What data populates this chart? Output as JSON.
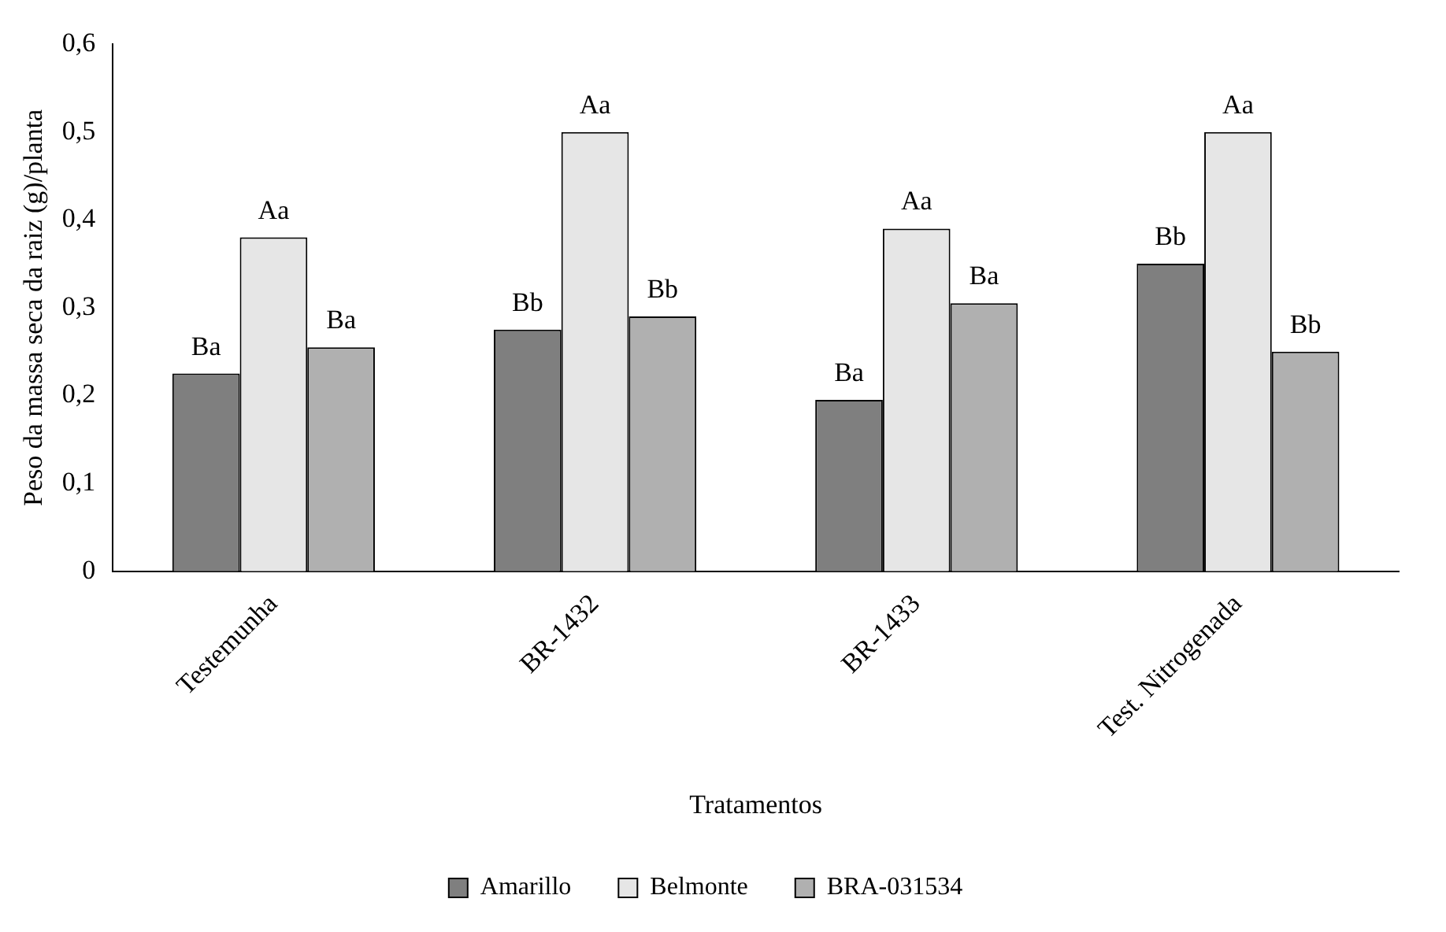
{
  "chart_data": {
    "type": "bar",
    "xlabel": "Tratamentos",
    "ylabel": "Peso da massa seca da raiz (g)/planta",
    "categories": [
      "Testemunha",
      "BR-1432",
      "BR-1433",
      "Test. Nitrogenada"
    ],
    "series": [
      {
        "name": "Amarillo",
        "color": "#7f7f7f",
        "values": [
          0.225,
          0.275,
          0.195,
          0.35
        ],
        "value_labels": [
          "Ba",
          "Bb",
          "Ba",
          "Bb"
        ]
      },
      {
        "name": "Belmonte",
        "color": "#e6e6e6",
        "values": [
          0.38,
          0.5,
          0.39,
          0.5
        ],
        "value_labels": [
          "Aa",
          "Aa",
          "Aa",
          "Aa"
        ]
      },
      {
        "name": "BRA-031534",
        "color": "#b0b0b0",
        "values": [
          0.255,
          0.29,
          0.305,
          0.25
        ],
        "value_labels": [
          "Ba",
          "Bb",
          "Ba",
          "Bb"
        ]
      }
    ],
    "ylim": [
      0,
      0.6
    ],
    "yticks": [
      {
        "value": 0,
        "label": "0"
      },
      {
        "value": 0.1,
        "label": "0,1"
      },
      {
        "value": 0.2,
        "label": "0,2"
      },
      {
        "value": 0.3,
        "label": "0,3"
      },
      {
        "value": 0.4,
        "label": "0,4"
      },
      {
        "value": 0.5,
        "label": "0,5"
      },
      {
        "value": 0.6,
        "label": "0,6"
      }
    ],
    "grid": false,
    "legend": "bottom"
  }
}
